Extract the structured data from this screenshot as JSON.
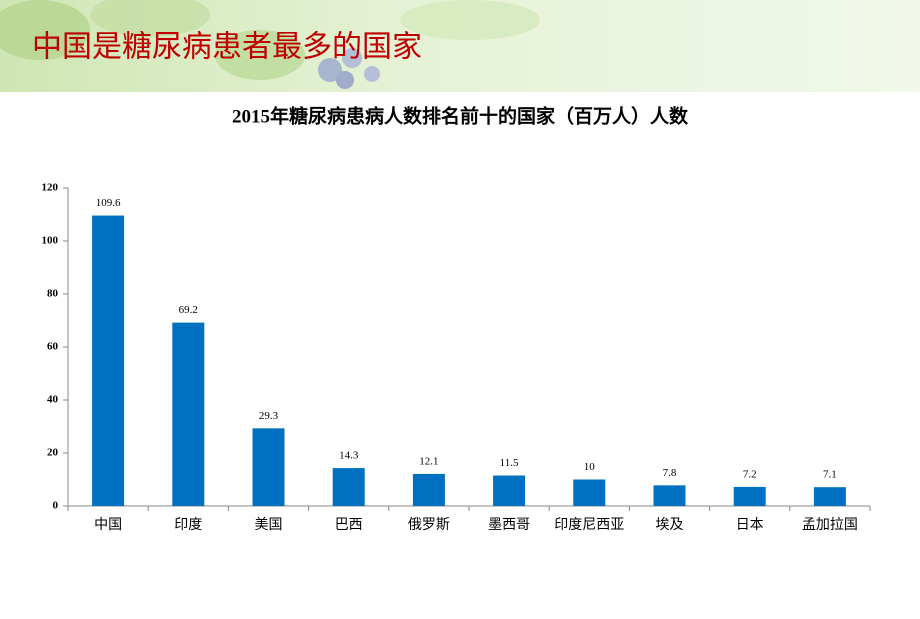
{
  "slide_title": "中国是糖尿病患者最多的国家",
  "chart_data": {
    "type": "bar",
    "title": "2015年糖尿病患病人数排名前十的国家（百万人）人数",
    "categories": [
      "中国",
      "印度",
      "美国",
      "巴西",
      "俄罗斯",
      "墨西哥",
      "印度尼西亚",
      "埃及",
      "日本",
      "孟加拉国"
    ],
    "values": [
      109.6,
      69.2,
      29.3,
      14.3,
      12.1,
      11.5,
      10,
      7.8,
      7.2,
      7.1
    ],
    "color": "#0070c0",
    "ylim": [
      0,
      120
    ],
    "yticks": [
      0,
      20,
      40,
      60,
      80,
      100,
      120
    ],
    "grid": false
  }
}
